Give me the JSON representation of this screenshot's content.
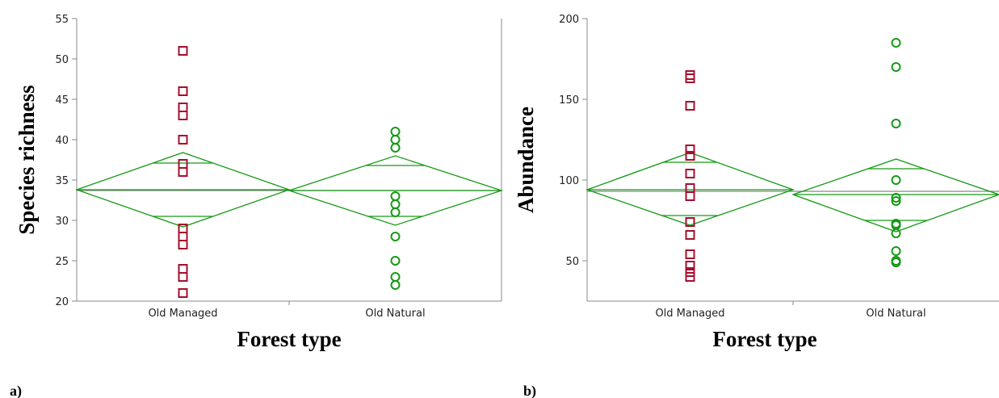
{
  "colors": {
    "managed": "#a50f2d",
    "natural": "#159a15",
    "diamond": "#159a15",
    "grand_mean": "#888888",
    "axis": "#888888"
  },
  "chart_data": [
    {
      "type": "scatter",
      "panel_label": "a)",
      "xlabel": "Forest type",
      "ylabel": "Species richness",
      "categories": [
        "Old Managed",
        "Old Natural"
      ],
      "ylim": [
        20,
        55
      ],
      "yticks": [
        20,
        25,
        30,
        35,
        40,
        45,
        50,
        55
      ],
      "grid": false,
      "grand_mean": 33.7,
      "series": [
        {
          "category": "Old Managed",
          "marker": "square",
          "color": "#a50f2d",
          "values": [
            51,
            46,
            44,
            43,
            40,
            37,
            36,
            29,
            28,
            27,
            24,
            23,
            21
          ],
          "mean": 33.8,
          "ci": [
            29.2,
            38.4
          ],
          "overlap": [
            30.5,
            37.1
          ]
        },
        {
          "category": "Old Natural",
          "marker": "circle",
          "color": "#159a15",
          "values": [
            41,
            40,
            39,
            33,
            32,
            31,
            28,
            25,
            23,
            22
          ],
          "mean": 33.7,
          "ci": [
            29.4,
            38.0
          ],
          "overlap": [
            30.5,
            36.8
          ]
        }
      ]
    },
    {
      "type": "scatter",
      "panel_label": "b)",
      "xlabel": "Forest type",
      "ylabel": "Abundance",
      "categories": [
        "Old Managed",
        "Old Natural"
      ],
      "ylim": [
        25,
        200
      ],
      "yticks": [
        50,
        100,
        150,
        200
      ],
      "grid": false,
      "grand_mean": 93,
      "series": [
        {
          "category": "Old Managed",
          "marker": "square",
          "color": "#a50f2d",
          "values": [
            165,
            163,
            146,
            119,
            115,
            104,
            95,
            90,
            74,
            66,
            54,
            47,
            43,
            40
          ],
          "mean": 94,
          "ci": [
            72,
            117
          ],
          "overlap": [
            78,
            111
          ]
        },
        {
          "category": "Old Natural",
          "marker": "circle",
          "color": "#159a15",
          "values": [
            185,
            170,
            135,
            100,
            89,
            87,
            73,
            72,
            67,
            56,
            50,
            49
          ],
          "mean": 91,
          "ci": [
            68,
            113
          ],
          "overlap": [
            75,
            107
          ]
        }
      ]
    }
  ]
}
